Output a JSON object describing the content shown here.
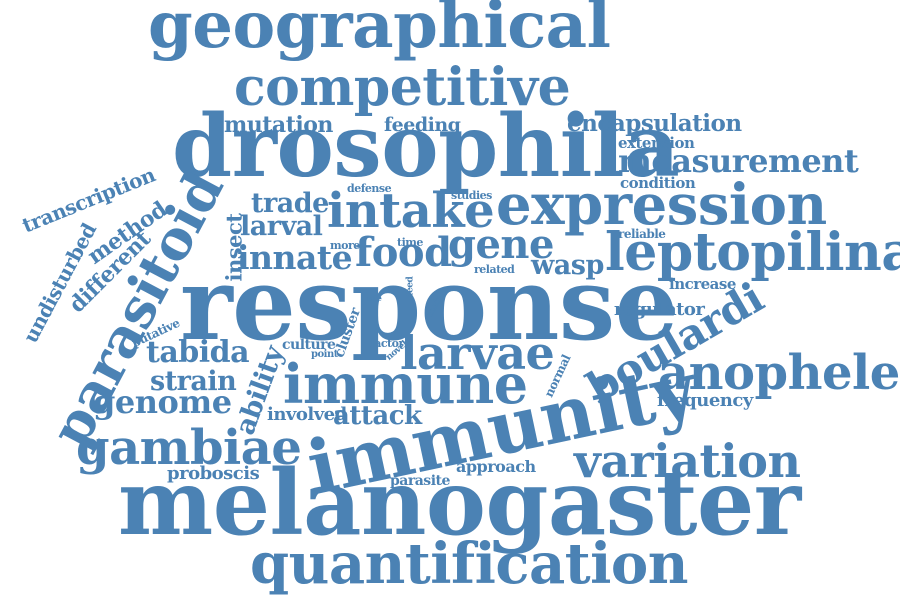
{
  "color": "#4b82b4",
  "words": {
    "geographical": "geographical",
    "competitive": "competitive",
    "drosophila": "drosophila",
    "mutation": "mutation",
    "feeding": "feeding",
    "encapsulation": "encapsulation",
    "extension": "extension",
    "measurement": "measurement",
    "transcription": "transcription",
    "condition": "condition",
    "defense": "defense",
    "studies": "studies",
    "method": "method",
    "trade": "trade",
    "intake": "intake",
    "expression": "expression",
    "undisturbed": "undisturbed",
    "larval": "larval",
    "insect": "insect",
    "reliable": "reliable",
    "different": "different",
    "more": "more",
    "time": "time",
    "leptopilina": "leptopilina",
    "parasitoid": "parasitoid",
    "innate": "innate",
    "food": "food",
    "gene": "gene",
    "wasp": "wasp",
    "related": "related",
    "increase": "increase",
    "response": "response",
    "site": "site",
    "feed": "feed",
    "main": "main",
    "regulator": "regulator",
    "putative": "putative",
    "boulardi": "boulardi",
    "cluster": "cluster",
    "culture": "culture",
    "factor": "factor",
    "point": "point",
    "novel": "novel",
    "tabida": "tabida",
    "larvae": "larvae",
    "ability": "ability",
    "normal": "normal",
    "anophele": "anophele",
    "immune": "immune",
    "strain": "strain",
    "genome": "genome",
    "frequency": "frequency",
    "involved": "involved",
    "attack": "attack",
    "immunity": "immunity",
    "gambiae": "gambiae",
    "variation": "variation",
    "proboscis": "proboscis",
    "approach": "approach",
    "parasite": "parasite",
    "melanogaster": "melanogaster",
    "quantification": "quantification"
  }
}
